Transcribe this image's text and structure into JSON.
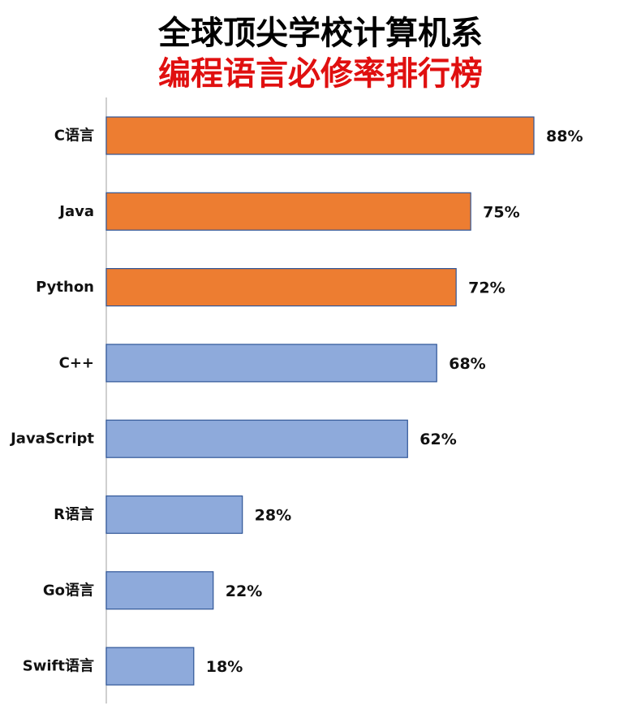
{
  "chart_data": {
    "type": "bar",
    "orientation": "horizontal",
    "title": "全球顶尖学校计算机系",
    "subtitle": "编程语言必修率排行榜",
    "categories": [
      "C语言",
      "Java",
      "Python",
      "C++",
      "JavaScript",
      "R语言",
      "Go语言",
      "Swift语言"
    ],
    "values": [
      88,
      75,
      72,
      68,
      62,
      28,
      22,
      18
    ],
    "value_labels": [
      "88%",
      "75%",
      "72%",
      "68%",
      "62%",
      "28%",
      "22%",
      "18%"
    ],
    "unit": "%",
    "xlim": [
      0,
      100
    ],
    "grid": false,
    "legend": "none",
    "colors": {
      "highlight": "#ed7d31",
      "normal": "#8eaadb",
      "bar_border": "#2f5597",
      "axis": "#bfbfbf",
      "title_primary": "#000000",
      "title_secondary": "#e01010"
    },
    "highlight_count": 3
  }
}
